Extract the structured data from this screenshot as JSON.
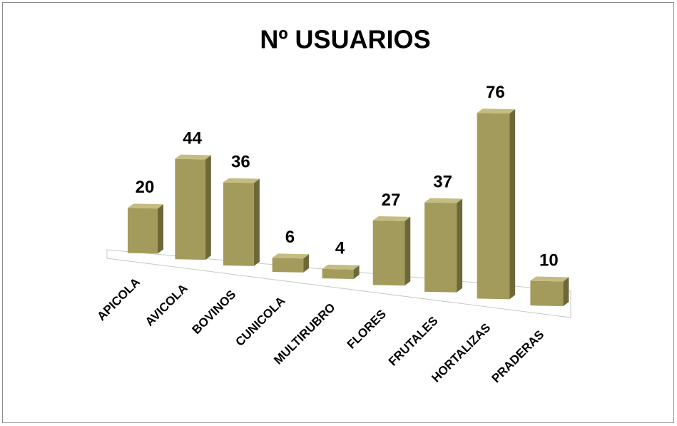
{
  "chart_data": {
    "type": "bar3d",
    "title": "Nº USUARIOS",
    "categories": [
      "APICOLA",
      "AVICOLA",
      "BOVINOS",
      "CUNICOLA",
      "MULTIRUBRO",
      "FLORES",
      "FRUTALES",
      "HORTALIZAS",
      "PRADERAS"
    ],
    "values": [
      20,
      44,
      36,
      6,
      4,
      27,
      37,
      76,
      10
    ],
    "color": "#a39b5c"
  }
}
